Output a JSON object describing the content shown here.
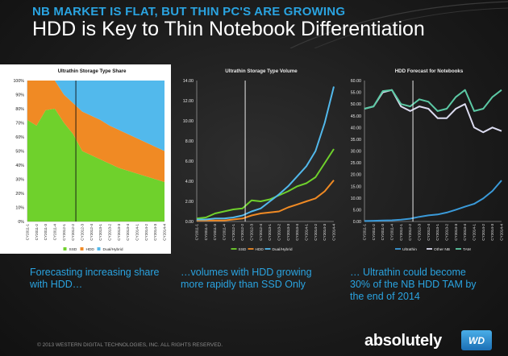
{
  "header": {
    "kicker": "NB MARKET IS FLAT, BUT THIN PC'S ARE GROWING",
    "title": "HDD is Key to Thin Notebook Differentiation"
  },
  "captions": [
    "Forecasting increasing share with HDD…",
    "…volumes with HDD growing more rapidly than SSD Only",
    "… Ultrathin could become 30% of the NB HDD TAM by the end of 2014"
  ],
  "footer": {
    "copyright": "© 2013 WESTERN DIGITAL TECHNOLOGIES, INC. ALL RIGHTS RESERVED.",
    "brand": "absolutely",
    "logo_text": "WD"
  },
  "colors": {
    "ssd": "#6fd12c",
    "hdd": "#f08a24",
    "dual": "#52b9ec",
    "ultrathin": "#3a9ad9",
    "other_nb": "#dcdcf0",
    "tam": "#5cc9a5"
  },
  "chart_data": [
    {
      "type": "area",
      "title": "Ultrathin Storage Type Share",
      "categories": [
        "CY2011-1",
        "CY2011-2",
        "CY2011-3",
        "CY2011-4",
        "CY2012-1",
        "CY2012-2",
        "CY2012-3",
        "CY2012-4",
        "CY2013-1",
        "CY2013-2",
        "CY2013-3",
        "CY2013-4",
        "CY2014-1",
        "CY2014-2",
        "CY2014-3",
        "CY2014-4"
      ],
      "stacked": true,
      "ylim": [
        0,
        100
      ],
      "yticks": [
        "0%",
        "10%",
        "20%",
        "30%",
        "40%",
        "50%",
        "60%",
        "70%",
        "80%",
        "90%",
        "100%"
      ],
      "series": [
        {
          "name": "SSD",
          "values": [
            72,
            68,
            79,
            80,
            70,
            62,
            50,
            47,
            44,
            41,
            38,
            36,
            34,
            32,
            30,
            28
          ]
        },
        {
          "name": "HDD",
          "values": [
            28,
            32,
            21,
            20,
            20,
            22,
            28,
            28,
            28,
            27,
            27,
            26,
            25,
            24,
            23,
            22
          ]
        },
        {
          "name": "Dual/Hybrid",
          "values": [
            0,
            0,
            0,
            0,
            10,
            16,
            22,
            25,
            28,
            32,
            35,
            38,
            41,
            44,
            47,
            50
          ]
        }
      ],
      "legend": "bottom",
      "grid": false
    },
    {
      "type": "line",
      "title": "Ultrathin Storage Type Volume",
      "categories": [
        "CY2011-1",
        "CY2011-2",
        "CY2011-3",
        "CY2011-4",
        "CY2012-1",
        "CY2012-2",
        "CY2012-3",
        "CY2012-4",
        "CY2013-1",
        "CY2013-2",
        "CY2013-3",
        "CY2013-4",
        "CY2014-1",
        "CY2014-2",
        "CY2014-3",
        "CY2014-4"
      ],
      "ylim": [
        0,
        14
      ],
      "yticks": [
        "0.00",
        "2.00",
        "4.00",
        "6.00",
        "8.00",
        "10.00",
        "12.00",
        "14.00"
      ],
      "series": [
        {
          "name": "SSD",
          "values": [
            0.3,
            0.4,
            0.8,
            1.0,
            1.2,
            1.3,
            2.1,
            2.0,
            2.2,
            2.6,
            3.0,
            3.5,
            3.8,
            4.4,
            5.8,
            7.2
          ]
        },
        {
          "name": "HDD",
          "values": [
            0.1,
            0.1,
            0.1,
            0.1,
            0.2,
            0.3,
            0.6,
            0.8,
            0.9,
            1.0,
            1.4,
            1.7,
            2.0,
            2.3,
            3.0,
            4.1
          ]
        },
        {
          "name": "Dual/Hybrid",
          "values": [
            0.2,
            0.2,
            0.3,
            0.3,
            0.4,
            0.6,
            1.0,
            1.3,
            2.0,
            2.7,
            3.5,
            4.5,
            5.5,
            7.0,
            9.8,
            13.4
          ]
        }
      ],
      "legend": "bottom",
      "grid": false
    },
    {
      "type": "line",
      "title": "HDD Forecast for Notebooks",
      "categories": [
        "CY2011-1",
        "CY2011-2",
        "CY2011-3",
        "CY2011-4",
        "CY2012-1",
        "CY2012-2",
        "CY2012-3",
        "CY2012-4",
        "CY2013-1",
        "CY2013-2",
        "CY2013-3",
        "CY2013-4",
        "CY2014-1",
        "CY2014-2",
        "CY2014-3",
        "CY2014-4"
      ],
      "ylim": [
        0,
        60
      ],
      "yticks": [
        "0.00",
        "5.00",
        "10.00",
        "15.00",
        "20.00",
        "25.00",
        "30.00",
        "35.00",
        "40.00",
        "45.00",
        "50.00",
        "55.00",
        "60.00"
      ],
      "series": [
        {
          "name": "Ultrathin",
          "values": [
            0.2,
            0.3,
            0.4,
            0.5,
            0.8,
            1.2,
            2.0,
            2.6,
            3.0,
            3.8,
            5.0,
            6.3,
            7.5,
            9.8,
            13.0,
            17.5
          ]
        },
        {
          "name": "Other NB",
          "values": [
            48,
            49,
            55,
            56,
            49,
            47,
            49,
            48,
            44,
            44,
            48,
            50,
            40,
            38,
            40,
            38.5
          ]
        },
        {
          "name": "TAM",
          "values": [
            48,
            49,
            55.5,
            56,
            50,
            49,
            52,
            51,
            47,
            48,
            53,
            56,
            47,
            48,
            53,
            56
          ]
        }
      ],
      "legend": "bottom",
      "grid": false
    }
  ]
}
